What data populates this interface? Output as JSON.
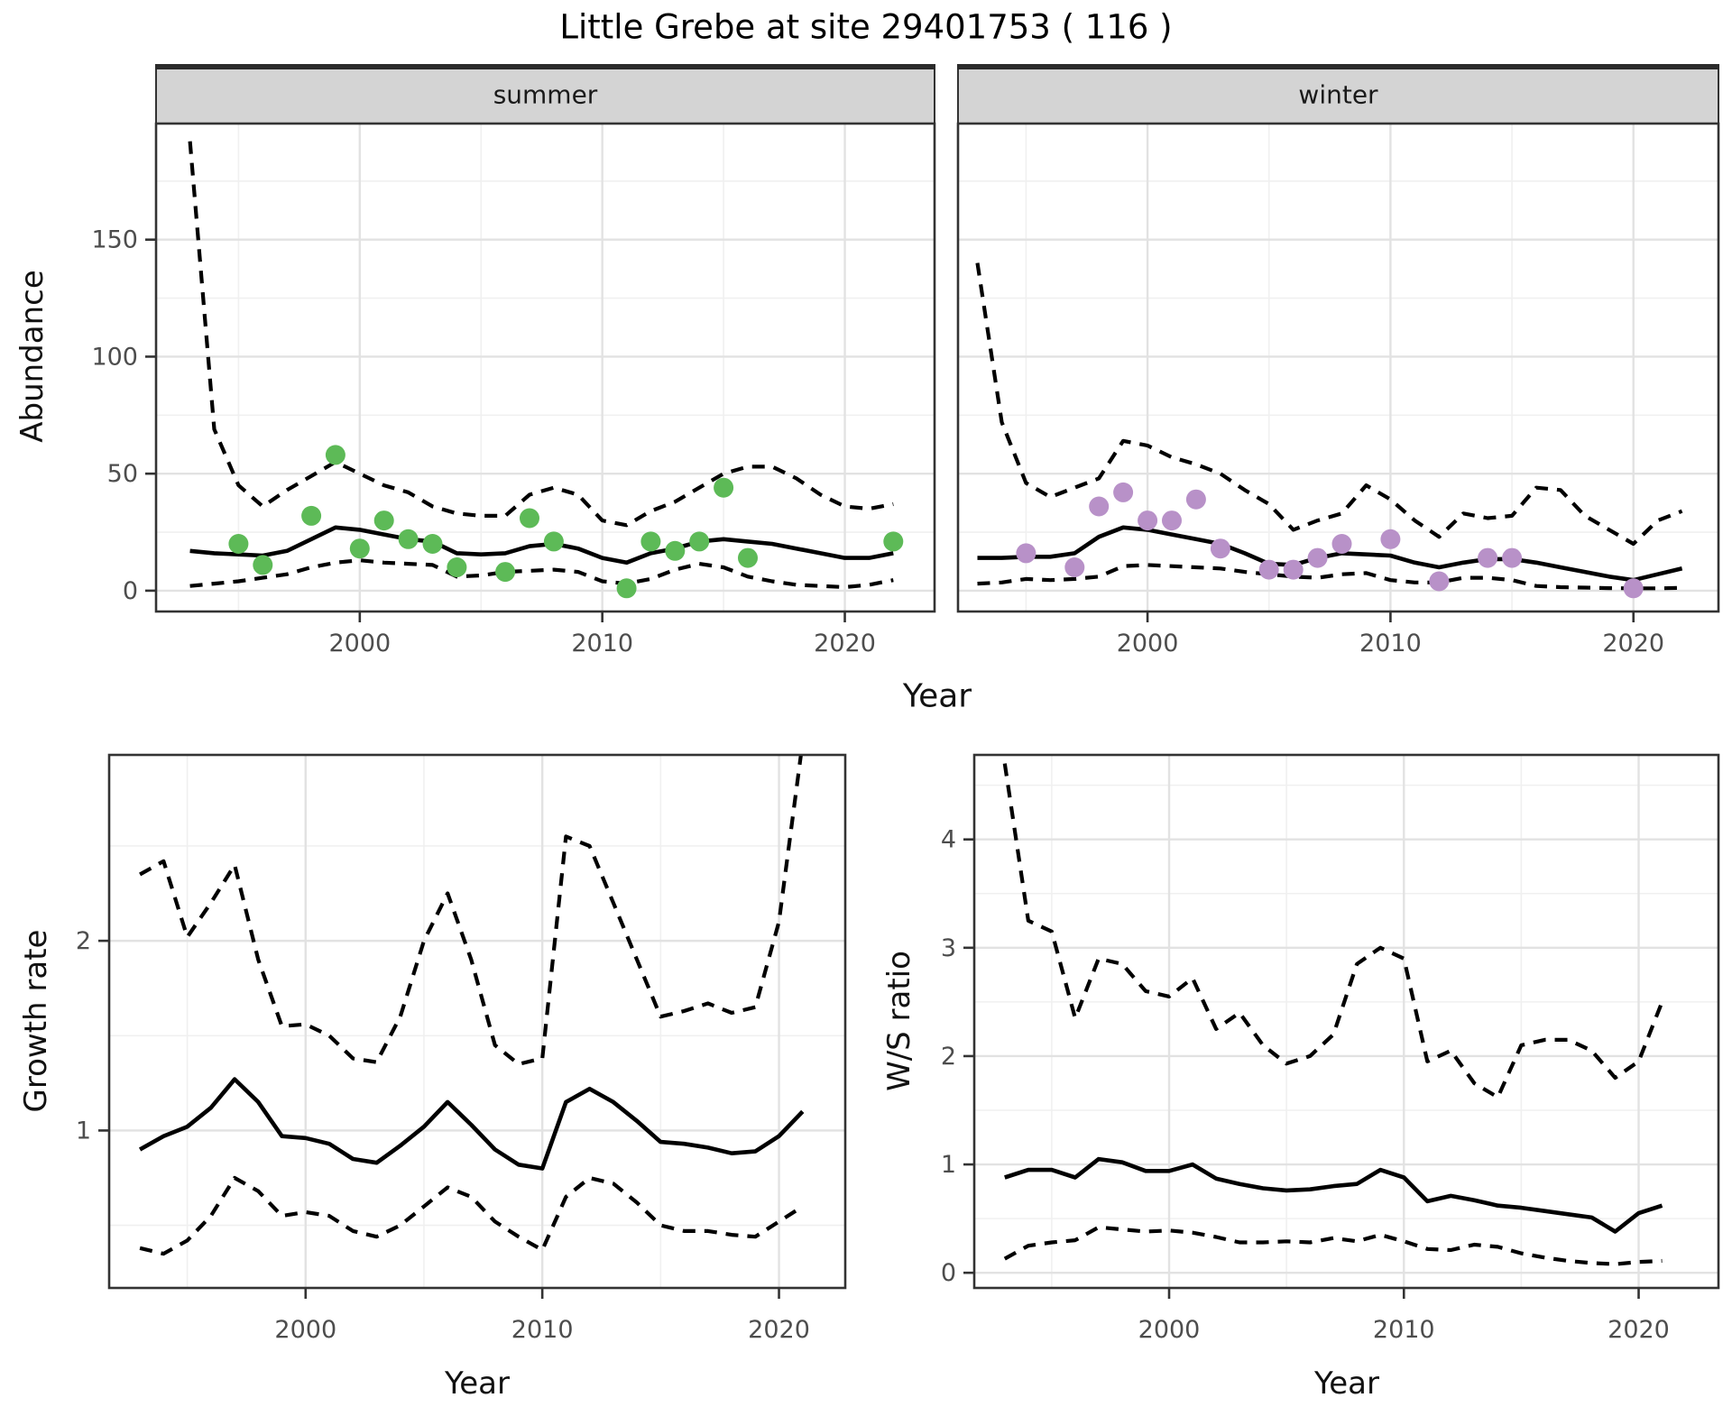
{
  "title": "Little Grebe at site 29401753 ( 116 )",
  "colors": {
    "line": "#000000",
    "summer_point": "#5DBA57",
    "winter_point": "#B891C8",
    "strip_fill": "#D4D4D4",
    "strip_border": "#2B2B2B",
    "panel_border": "#333333",
    "grid_major": "#E2E2E2",
    "grid_minor": "#F0F0F0",
    "tick_text": "#4D4D4D"
  },
  "chart_data": [
    {
      "id": "abundance_summer",
      "type": "line",
      "facet": "summer",
      "xlabel": "Year",
      "ylabel": "Abundance",
      "x_ticks": [
        2000,
        2010,
        2020
      ],
      "y_ticks": [
        0,
        50,
        100,
        150
      ],
      "xlim": [
        1991.6,
        2023.7
      ],
      "ylim": [
        -8.9,
        199.6
      ],
      "grid": true,
      "x": [
        1993,
        1994,
        1995,
        1996,
        1997,
        1998,
        1999,
        2000,
        2001,
        2002,
        2003,
        2004,
        2005,
        2006,
        2007,
        2008,
        2009,
        2010,
        2011,
        2012,
        2013,
        2014,
        2015,
        2016,
        2017,
        2018,
        2019,
        2020,
        2021,
        2022
      ],
      "series": [
        {
          "name": "median",
          "style": "solid",
          "values": [
            17,
            16,
            15.5,
            15,
            17,
            22,
            27,
            26,
            24,
            22,
            21,
            16,
            15.5,
            16,
            19,
            20,
            18,
            14,
            12,
            16,
            18,
            21,
            22,
            21,
            20,
            18,
            16,
            14,
            14,
            16
          ]
        },
        {
          "name": "upper_ci",
          "style": "dashed",
          "values": [
            192,
            69,
            45,
            36,
            43,
            49,
            55,
            50,
            45,
            42,
            36,
            33,
            32,
            32,
            41,
            44,
            41,
            30,
            28,
            34,
            38,
            44,
            50,
            53,
            53,
            48,
            41,
            36,
            35,
            37
          ]
        },
        {
          "name": "lower_ci",
          "style": "dashed",
          "values": [
            2,
            3,
            4,
            5.5,
            7,
            10,
            12,
            13,
            12,
            11.5,
            11,
            6,
            6.5,
            8,
            8.5,
            9,
            8,
            4,
            3,
            5,
            9,
            11.5,
            10,
            6,
            4,
            2.5,
            2,
            1.5,
            2.5,
            4.5
          ]
        }
      ],
      "points": {
        "name": "observed_counts",
        "color_key": "summer_point",
        "xy": [
          [
            1995,
            20
          ],
          [
            1996,
            11
          ],
          [
            1998,
            32
          ],
          [
            1999,
            58
          ],
          [
            2000,
            18
          ],
          [
            2001,
            30
          ],
          [
            2002,
            22
          ],
          [
            2003,
            20
          ],
          [
            2004,
            10
          ],
          [
            2006,
            8
          ],
          [
            2007,
            31
          ],
          [
            2008,
            21
          ],
          [
            2011,
            1
          ],
          [
            2012,
            21
          ],
          [
            2013,
            17
          ],
          [
            2014,
            21
          ],
          [
            2015,
            44
          ],
          [
            2016,
            14
          ],
          [
            2022,
            21
          ]
        ]
      }
    },
    {
      "id": "abundance_winter",
      "type": "line",
      "facet": "winter",
      "xlabel": "Year",
      "ylabel": "Abundance",
      "x_ticks": [
        2000,
        2010,
        2020
      ],
      "y_ticks": [
        0,
        50,
        100,
        150
      ],
      "xlim": [
        1992.2,
        2023.5
      ],
      "ylim": [
        -8.9,
        199.6
      ],
      "grid": true,
      "x": [
        1993,
        1994,
        1995,
        1996,
        1997,
        1998,
        1999,
        2000,
        2001,
        2002,
        2003,
        2004,
        2005,
        2006,
        2007,
        2008,
        2009,
        2010,
        2011,
        2012,
        2013,
        2014,
        2015,
        2016,
        2017,
        2018,
        2019,
        2020,
        2021,
        2022
      ],
      "series": [
        {
          "name": "median",
          "style": "solid",
          "values": [
            14,
            14,
            14.5,
            14.5,
            16,
            23,
            27,
            26,
            24,
            22,
            20,
            16,
            11.5,
            11,
            14,
            16,
            15.5,
            15,
            12,
            10,
            12,
            13.5,
            13.5,
            12,
            10,
            8,
            6,
            4.5,
            7,
            9.5
          ]
        },
        {
          "name": "upper_ci",
          "style": "dashed",
          "values": [
            140,
            72,
            46,
            40,
            44,
            48,
            64,
            62,
            57,
            54,
            50,
            43,
            37,
            26,
            30,
            33,
            45,
            39,
            30,
            23,
            33,
            31,
            32,
            44,
            43,
            32,
            26,
            20,
            30,
            34
          ]
        },
        {
          "name": "lower_ci",
          "style": "dashed",
          "values": [
            3,
            3.5,
            5,
            4.5,
            5,
            6,
            10.5,
            11,
            10.5,
            10,
            9.5,
            8,
            7,
            6,
            5.5,
            7,
            7.5,
            4.5,
            3.5,
            3.5,
            5.5,
            5.5,
            4.5,
            2,
            1.5,
            1.3,
            1.1,
            1,
            1,
            1.2
          ]
        }
      ],
      "points": {
        "name": "observed_counts",
        "color_key": "winter_point",
        "xy": [
          [
            1995,
            16
          ],
          [
            1997,
            10
          ],
          [
            1998,
            36
          ],
          [
            1999,
            42
          ],
          [
            2000,
            30
          ],
          [
            2001,
            30
          ],
          [
            2002,
            39
          ],
          [
            2003,
            18
          ],
          [
            2005,
            9
          ],
          [
            2006,
            9
          ],
          [
            2007,
            14
          ],
          [
            2008,
            20
          ],
          [
            2010,
            22
          ],
          [
            2012,
            4
          ],
          [
            2014,
            14
          ],
          [
            2015,
            14
          ],
          [
            2020,
            1
          ]
        ]
      }
    },
    {
      "id": "growth_rate",
      "type": "line",
      "facet": null,
      "xlabel": "Year",
      "ylabel": "Growth rate",
      "x_ticks": [
        2000,
        2010,
        2020
      ],
      "y_ticks": [
        1,
        2
      ],
      "xlim": [
        1991.7,
        2022.8
      ],
      "ylim": [
        0.17,
        2.98
      ],
      "grid": true,
      "x": [
        1993,
        1994,
        1995,
        1996,
        1997,
        1998,
        1999,
        2000,
        2001,
        2002,
        2003,
        2004,
        2005,
        2006,
        2007,
        2008,
        2009,
        2010,
        2011,
        2012,
        2013,
        2014,
        2015,
        2016,
        2017,
        2018,
        2019,
        2020,
        2021
      ],
      "series": [
        {
          "name": "median",
          "style": "solid",
          "values": [
            0.9,
            0.97,
            1.02,
            1.12,
            1.27,
            1.15,
            0.97,
            0.96,
            0.93,
            0.85,
            0.83,
            0.92,
            1.02,
            1.15,
            1.03,
            0.9,
            0.82,
            0.8,
            1.15,
            1.22,
            1.15,
            1.05,
            0.94,
            0.93,
            0.91,
            0.88,
            0.89,
            0.97,
            1.1
          ]
        },
        {
          "name": "upper_ci",
          "style": "dashed",
          "values": [
            2.35,
            2.42,
            2.02,
            2.2,
            2.4,
            1.9,
            1.55,
            1.56,
            1.5,
            1.38,
            1.36,
            1.6,
            2.0,
            2.25,
            1.9,
            1.45,
            1.35,
            1.38,
            2.55,
            2.5,
            2.2,
            1.9,
            1.6,
            1.63,
            1.67,
            1.62,
            1.65,
            2.1,
            3.05
          ]
        },
        {
          "name": "lower_ci",
          "style": "dashed",
          "values": [
            0.38,
            0.35,
            0.42,
            0.55,
            0.75,
            0.68,
            0.55,
            0.57,
            0.55,
            0.47,
            0.44,
            0.5,
            0.6,
            0.7,
            0.65,
            0.52,
            0.44,
            0.37,
            0.65,
            0.75,
            0.72,
            0.62,
            0.5,
            0.47,
            0.47,
            0.45,
            0.44,
            0.52,
            0.6
          ]
        }
      ],
      "points": null
    },
    {
      "id": "ws_ratio",
      "type": "line",
      "facet": null,
      "xlabel": "Year",
      "ylabel": "W/S ratio",
      "x_ticks": [
        2000,
        2010,
        2020
      ],
      "y_ticks": [
        0,
        1,
        2,
        3,
        4
      ],
      "xlim": [
        1991.7,
        2023.4
      ],
      "ylim": [
        -0.14,
        4.78
      ],
      "grid": true,
      "x": [
        1993,
        1994,
        1995,
        1996,
        1997,
        1998,
        1999,
        2000,
        2001,
        2002,
        2003,
        2004,
        2005,
        2006,
        2007,
        2008,
        2009,
        2010,
        2011,
        2012,
        2013,
        2014,
        2015,
        2016,
        2017,
        2018,
        2019,
        2020,
        2021
      ],
      "series": [
        {
          "name": "median",
          "style": "solid",
          "values": [
            0.88,
            0.95,
            0.95,
            0.88,
            1.05,
            1.02,
            0.94,
            0.94,
            1.0,
            0.87,
            0.82,
            0.78,
            0.76,
            0.77,
            0.8,
            0.82,
            0.95,
            0.88,
            0.66,
            0.71,
            0.67,
            0.62,
            0.6,
            0.57,
            0.54,
            0.51,
            0.38,
            0.55,
            0.62
          ]
        },
        {
          "name": "upper_ci",
          "style": "dashed",
          "values": [
            4.7,
            3.25,
            3.15,
            2.35,
            2.9,
            2.85,
            2.6,
            2.55,
            2.72,
            2.25,
            2.4,
            2.1,
            1.93,
            2.0,
            2.2,
            2.85,
            3.0,
            2.9,
            1.95,
            2.05,
            1.75,
            1.62,
            2.1,
            2.15,
            2.15,
            2.05,
            1.8,
            1.95,
            2.5
          ]
        },
        {
          "name": "lower_ci",
          "style": "dashed",
          "values": [
            0.13,
            0.25,
            0.28,
            0.3,
            0.42,
            0.4,
            0.38,
            0.39,
            0.37,
            0.33,
            0.28,
            0.28,
            0.29,
            0.28,
            0.32,
            0.29,
            0.35,
            0.29,
            0.22,
            0.21,
            0.26,
            0.24,
            0.18,
            0.14,
            0.11,
            0.09,
            0.08,
            0.1,
            0.11
          ]
        }
      ],
      "points": null
    }
  ]
}
